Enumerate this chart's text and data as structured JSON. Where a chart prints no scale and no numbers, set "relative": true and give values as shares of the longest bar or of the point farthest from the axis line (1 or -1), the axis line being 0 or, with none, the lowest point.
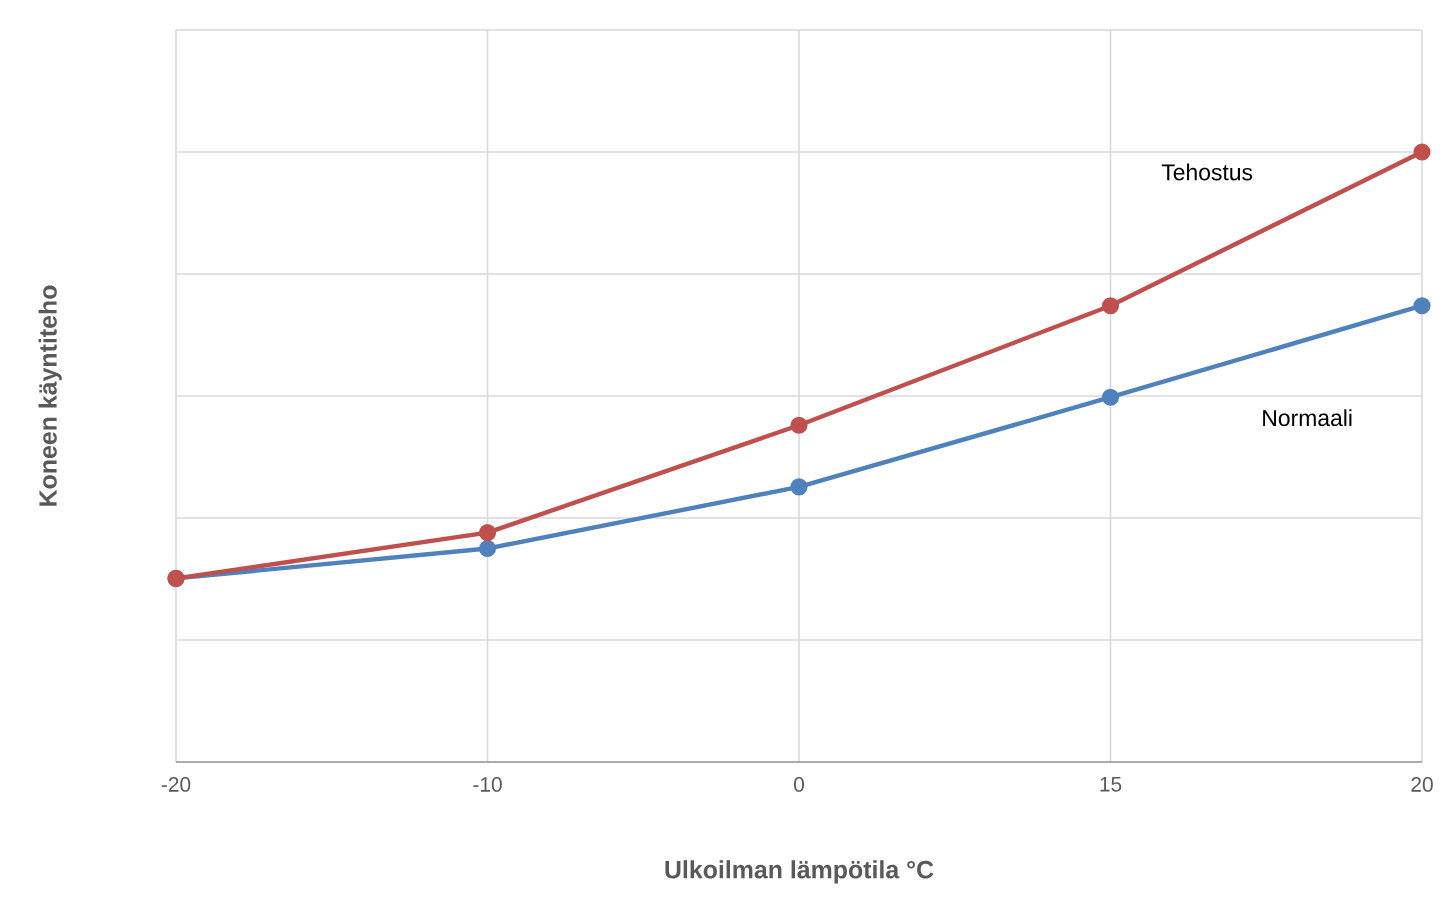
{
  "chart_data": {
    "type": "line",
    "xlabel": "Ulkoilman lämpötila °C",
    "ylabel": "Koneen käyntiteho",
    "categories": [
      "-20",
      "-10",
      "0",
      "15",
      "20"
    ],
    "series": [
      {
        "name": "Normaali",
        "color": "#4f81bd",
        "values": [
          0.301,
          0.35,
          0.451,
          0.598,
          0.748
        ]
      },
      {
        "name": "Tehostus",
        "color": "#c0504d",
        "values": [
          0.301,
          0.376,
          0.552,
          0.748,
          1.0
        ]
      }
    ],
    "relative": true,
    "grid": true,
    "marker": "circle",
    "line_style": "solid"
  }
}
